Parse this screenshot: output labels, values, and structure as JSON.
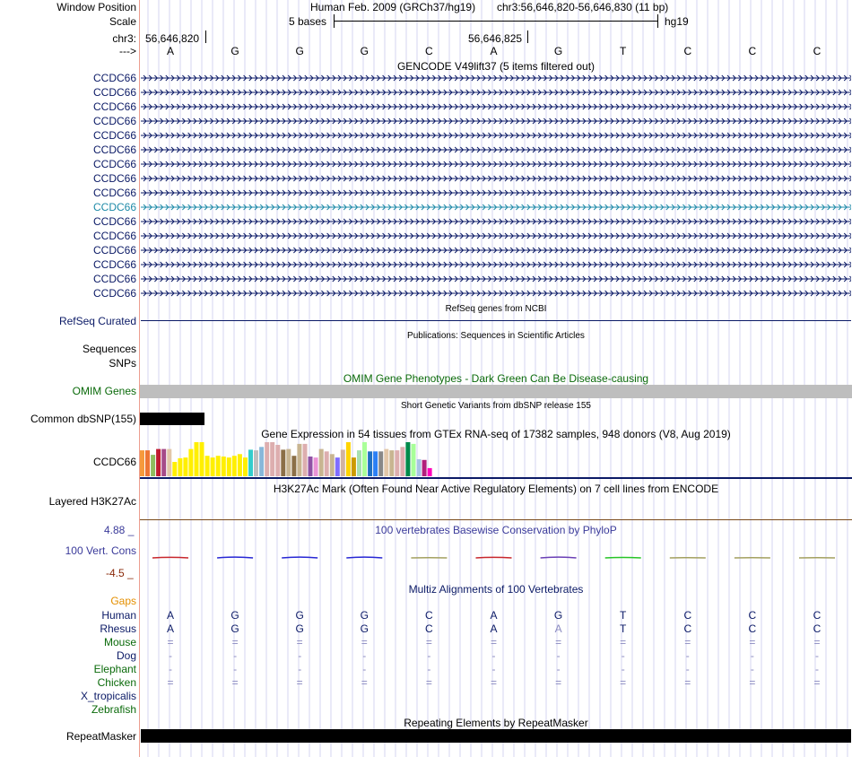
{
  "header": {
    "window_position_label": "Window Position",
    "assembly_text": "Human Feb. 2009 (GRCh37/hg19)",
    "position_text": "chr3:56,646,820-56,646,830 (11 bp)",
    "scale_label": "Scale",
    "scale_text": "5 bases",
    "scale_db": "hg19",
    "chrom_label": "chr3:",
    "coord_left": "56,646,820",
    "coord_mid": "56,646,825",
    "strand_label": "--->"
  },
  "sequence": [
    "A",
    "G",
    "G",
    "G",
    "C",
    "A",
    "G",
    "T",
    "C",
    "C",
    "C"
  ],
  "gencode": {
    "title": "GENCODE V49lift37 (5 items filtered out)",
    "genes": [
      "CCDC66",
      "CCDC66",
      "CCDC66",
      "CCDC66",
      "CCDC66",
      "CCDC66",
      "CCDC66",
      "CCDC66",
      "CCDC66",
      "CCDC66",
      "CCDC66",
      "CCDC66",
      "CCDC66",
      "CCDC66",
      "CCDC66",
      "CCDC66"
    ],
    "highlight_index": 9
  },
  "refseq": {
    "title": "RefSeq genes from NCBI",
    "label": "RefSeq Curated"
  },
  "publications": {
    "title": "Publications: Sequences in Scientific Articles",
    "label1": "Sequences",
    "label2": "SNPs"
  },
  "omim": {
    "title": "OMIM Gene Phenotypes - Dark Green Can Be Disease-causing",
    "label": "OMIM Genes"
  },
  "dbsnp": {
    "title": "Short Genetic Variants from dbSNP release 155",
    "label": "Common dbSNP(155)"
  },
  "gtex": {
    "title": "Gene Expression in 54 tissues from GTEx RNA-seq of 17382 samples, 948 donors (V8, Aug 2019)",
    "label": "CCDC66",
    "bars": [
      {
        "color": "#f69a3c",
        "value": 0.76
      },
      {
        "color": "#ed7534",
        "value": 0.76
      },
      {
        "color": "#8fbc5f",
        "value": 0.63
      },
      {
        "color": "#c01b31",
        "value": 0.8
      },
      {
        "color": "#a64b89",
        "value": 0.8
      },
      {
        "color": "#e2c7a9",
        "value": 0.8
      },
      {
        "color": "#ffef00",
        "value": 0.42
      },
      {
        "color": "#ffef00",
        "value": 0.53
      },
      {
        "color": "#ffef00",
        "value": 0.55
      },
      {
        "color": "#ffef00",
        "value": 0.8
      },
      {
        "color": "#ffef00",
        "value": 1.0
      },
      {
        "color": "#ffef00",
        "value": 1.0
      },
      {
        "color": "#ffef00",
        "value": 0.6
      },
      {
        "color": "#ffef00",
        "value": 0.55
      },
      {
        "color": "#ffef00",
        "value": 0.6
      },
      {
        "color": "#ffef00",
        "value": 0.58
      },
      {
        "color": "#ffef00",
        "value": 0.55
      },
      {
        "color": "#ffef00",
        "value": 0.6
      },
      {
        "color": "#ffef00",
        "value": 0.65
      },
      {
        "color": "#ffef00",
        "value": 0.55
      },
      {
        "color": "#33cccc",
        "value": 0.78
      },
      {
        "color": "#bfbfbf",
        "value": 0.76
      },
      {
        "color": "#88b7d9",
        "value": 0.86
      },
      {
        "color": "#ddaeaf",
        "value": 1.0
      },
      {
        "color": "#ddaeaf",
        "value": 1.0
      },
      {
        "color": "#ddaeaf",
        "value": 0.92
      },
      {
        "color": "#8b6f47",
        "value": 0.78
      },
      {
        "color": "#c8b591",
        "value": 0.8
      },
      {
        "color": "#8b6f47",
        "value": 0.6
      },
      {
        "color": "#c8b591",
        "value": 0.95
      },
      {
        "color": "#ddaeaf",
        "value": 0.95
      },
      {
        "color": "#8f52a5",
        "value": 0.58
      },
      {
        "color": "#ea94d6",
        "value": 0.55
      },
      {
        "color": "#c8b591",
        "value": 0.8
      },
      {
        "color": "#ddaeaf",
        "value": 0.73
      },
      {
        "color": "#c8b591",
        "value": 0.65
      },
      {
        "color": "#7f6dff",
        "value": 0.55
      },
      {
        "color": "#d1b3a1",
        "value": 0.78
      },
      {
        "color": "#ffd400",
        "value": 1.0
      },
      {
        "color": "#cc9a00",
        "value": 0.55
      },
      {
        "color": "#a8e0b0",
        "value": 0.76
      },
      {
        "color": "#aaff99",
        "value": 1.0
      },
      {
        "color": "#1e6fc2",
        "value": 0.73
      },
      {
        "color": "#2b7ff5",
        "value": 0.73
      },
      {
        "color": "#888888",
        "value": 0.73
      },
      {
        "color": "#e2c7a9",
        "value": 0.8
      },
      {
        "color": "#c8b591",
        "value": 0.76
      },
      {
        "color": "#ddaeaf",
        "value": 0.76
      },
      {
        "color": "#ddaeaf",
        "value": 0.86
      },
      {
        "color": "#008a4b",
        "value": 1.0
      },
      {
        "color": "#a8ff99",
        "value": 0.95
      },
      {
        "color": "#a8c4e4",
        "value": 0.5
      },
      {
        "color": "#b11f7c",
        "value": 0.48
      },
      {
        "color": "#ff00bb",
        "value": 0.24
      }
    ]
  },
  "h3k27ac": {
    "title": "H3K27Ac Mark (Often Found Near Active Regulatory Elements) on 7 cell lines from ENCODE",
    "label": "Layered H3K27Ac"
  },
  "phylop": {
    "title": "100 vertebrates Basewise Conservation by PhyloP",
    "label": "100 Vert. Cons",
    "ymax": "4.88 _",
    "ymin": "-4.5 _",
    "scores": [
      0.4,
      0.6,
      0.6,
      0.6,
      0.2,
      0.4,
      0.6,
      0.3,
      0.2,
      0.2,
      0.2
    ],
    "colors": [
      "#c8272d",
      "#2727d4",
      "#2727d4",
      "#2727d4",
      "#a3a060",
      "#c8272d",
      "#6a3fb5",
      "#27c427",
      "#a3a060",
      "#a3a060",
      "#a3a060"
    ]
  },
  "multiz": {
    "title": "Multiz Alignments of 100 Vertebrates",
    "gaps_label": "Gaps",
    "species": [
      {
        "name": "Human",
        "color": "#0b1a66",
        "bases": [
          "A",
          "G",
          "G",
          "G",
          "C",
          "A",
          "G",
          "T",
          "C",
          "C",
          "C"
        ]
      },
      {
        "name": "Rhesus",
        "color": "#0b1a66",
        "bases": [
          "A",
          "G",
          "G",
          "G",
          "C",
          "A",
          "A",
          "T",
          "C",
          "C",
          "C"
        ]
      },
      {
        "name": "Mouse",
        "color": "#0a6a0a",
        "bases": [
          "=",
          "=",
          "=",
          "=",
          "=",
          "=",
          "=",
          "=",
          "=",
          "=",
          "="
        ]
      },
      {
        "name": "Dog",
        "color": "#0b1a66",
        "bases": [
          "-",
          "-",
          "-",
          "-",
          "-",
          "-",
          "-",
          "-",
          "-",
          "-",
          "-"
        ]
      },
      {
        "name": "Elephant",
        "color": "#0a6a0a",
        "bases": [
          "-",
          "-",
          "-",
          "-",
          "-",
          "-",
          "-",
          "-",
          "-",
          "-",
          "-"
        ]
      },
      {
        "name": "Chicken",
        "color": "#0a6a0a",
        "bases": [
          "=",
          "=",
          "=",
          "=",
          "=",
          "=",
          "=",
          "=",
          "=",
          "=",
          "="
        ]
      },
      {
        "name": "X_tropicalis",
        "color": "#0b1a66",
        "bases": []
      },
      {
        "name": "Zebrafish",
        "color": "#0a6a0a",
        "bases": []
      }
    ]
  },
  "repeatmasker": {
    "title": "Repeating Elements by RepeatMasker",
    "label": "RepeatMasker"
  },
  "colors": {
    "navy": "#0b1a66",
    "green": "#0a6a0a",
    "teal": "#1e8aa8",
    "gaps": "#e48f00",
    "omim_bar": "#bebebe",
    "grid": "#d6d6f2",
    "phylop_title": "#3a3a9a",
    "phylop_axis": "#8a2a0a"
  }
}
